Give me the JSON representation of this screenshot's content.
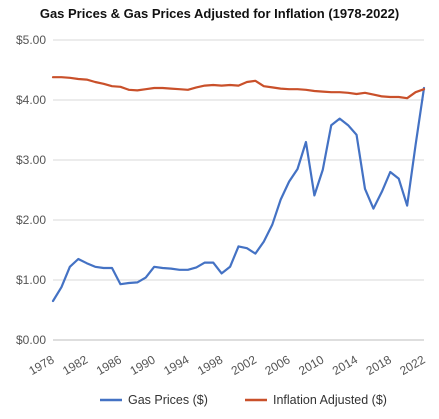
{
  "chart_data": {
    "type": "line",
    "title": "Gas Prices & Gas Prices Adjusted for Inflation (1978-2022)",
    "xlabel": "",
    "ylabel": "",
    "xlim": [
      1978,
      2022
    ],
    "ylim": [
      0,
      5
    ],
    "y_ticks": [
      "$0.00",
      "$1.00",
      "$2.00",
      "$3.00",
      "$4.00",
      "$5.00"
    ],
    "x_ticks": [
      "1978",
      "1982",
      "1986",
      "1990",
      "1994",
      "1998",
      "2002",
      "2006",
      "2010",
      "2014",
      "2018",
      "2022"
    ],
    "grid": "horizontal",
    "legend_position": "bottom",
    "series": [
      {
        "name": "Gas Prices ($)",
        "color": "#4472c4",
        "x": [
          1978,
          1979,
          1980,
          1981,
          1982,
          1983,
          1984,
          1985,
          1986,
          1987,
          1988,
          1989,
          1990,
          1991,
          1992,
          1993,
          1994,
          1995,
          1996,
          1997,
          1998,
          1999,
          2000,
          2001,
          2002,
          2003,
          2004,
          2005,
          2006,
          2007,
          2008,
          2009,
          2010,
          2011,
          2012,
          2013,
          2014,
          2015,
          2016,
          2017,
          2018,
          2019,
          2020,
          2021,
          2022
        ],
        "values": [
          0.65,
          0.88,
          1.22,
          1.35,
          1.28,
          1.22,
          1.2,
          1.2,
          0.93,
          0.95,
          0.96,
          1.04,
          1.22,
          1.2,
          1.19,
          1.17,
          1.17,
          1.21,
          1.29,
          1.29,
          1.11,
          1.22,
          1.56,
          1.53,
          1.44,
          1.64,
          1.92,
          2.34,
          2.64,
          2.85,
          3.3,
          2.41,
          2.84,
          3.58,
          3.69,
          3.58,
          3.42,
          2.52,
          2.19,
          2.47,
          2.8,
          2.69,
          2.24,
          3.25,
          4.2
        ]
      },
      {
        "name": "Inflation Adjusted ($)",
        "color": "#c9502a",
        "x": [
          1978,
          1979,
          1980,
          1981,
          1982,
          1983,
          1984,
          1985,
          1986,
          1987,
          1988,
          1989,
          1990,
          1991,
          1992,
          1993,
          1994,
          1995,
          1996,
          1997,
          1998,
          1999,
          2000,
          2001,
          2002,
          2003,
          2004,
          2005,
          2006,
          2007,
          2008,
          2009,
          2010,
          2011,
          2012,
          2013,
          2014,
          2015,
          2016,
          2017,
          2018,
          2019,
          2020,
          2021,
          2022
        ],
        "values": [
          4.38,
          4.38,
          4.37,
          4.35,
          4.34,
          4.3,
          4.27,
          4.23,
          4.22,
          4.17,
          4.16,
          4.18,
          4.2,
          4.2,
          4.19,
          4.18,
          4.17,
          4.21,
          4.24,
          4.25,
          4.24,
          4.25,
          4.24,
          4.3,
          4.32,
          4.23,
          4.21,
          4.19,
          4.18,
          4.18,
          4.17,
          4.15,
          4.14,
          4.13,
          4.13,
          4.12,
          4.1,
          4.12,
          4.09,
          4.06,
          4.05,
          4.05,
          4.03,
          4.13,
          4.18
        ]
      }
    ]
  }
}
